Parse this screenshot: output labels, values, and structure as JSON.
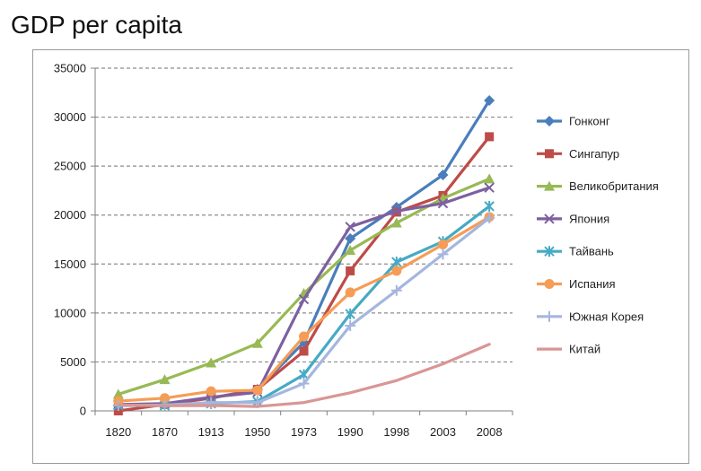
{
  "page": {
    "title": "GDP per capita"
  },
  "chart_data": {
    "type": "line",
    "title": "",
    "xlabel": "",
    "ylabel": "",
    "categories": [
      "1820",
      "1870",
      "1913",
      "1950",
      "1973",
      "1990",
      "1998",
      "2003",
      "2008"
    ],
    "y_ticks": [
      "0",
      "5000",
      "10000",
      "15000",
      "20000",
      "25000",
      "30000",
      "35000"
    ],
    "ylim": [
      0,
      35000
    ],
    "grid": "horizontal dashed",
    "legend_position": "right",
    "series": [
      {
        "name": "Гонконг",
        "color": "#4a7ebb",
        "marker": "diamond",
        "values": [
          600,
          700,
          1300,
          2200,
          7000,
          17600,
          20800,
          24100,
          31700
        ]
      },
      {
        "name": "Сингапур",
        "color": "#be4b48",
        "marker": "square",
        "values": [
          0,
          650,
          1300,
          2200,
          6100,
          14300,
          20300,
          22000,
          28000
        ]
      },
      {
        "name": "Великобритания",
        "color": "#98b954",
        "marker": "triangle",
        "values": [
          1700,
          3200,
          4900,
          6900,
          12000,
          16400,
          19200,
          21700,
          23700
        ]
      },
      {
        "name": "Япония",
        "color": "#7d60a0",
        "marker": "x",
        "values": [
          650,
          750,
          1400,
          1900,
          11400,
          18800,
          20400,
          21200,
          22800
        ]
      },
      {
        "name": "Тайвань",
        "color": "#46aac4",
        "marker": "asterisk",
        "values": [
          550,
          550,
          750,
          950,
          3700,
          9900,
          15200,
          17300,
          20900
        ]
      },
      {
        "name": "Испания",
        "color": "#f59d56",
        "marker": "circle",
        "values": [
          1000,
          1300,
          2000,
          2100,
          7600,
          12100,
          14300,
          17000,
          19800
        ]
      },
      {
        "name": "Южная Корея",
        "color": "#a5b6de",
        "marker": "plus",
        "values": [
          550,
          600,
          850,
          850,
          2800,
          8700,
          12300,
          16000,
          19700
        ]
      },
      {
        "name": "Китай",
        "color": "#d99694",
        "marker": "none",
        "values": [
          600,
          530,
          550,
          450,
          850,
          1850,
          3100,
          4800,
          6800
        ]
      }
    ]
  }
}
